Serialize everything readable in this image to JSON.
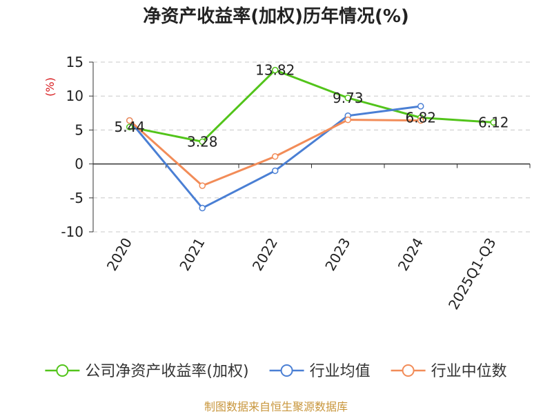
{
  "chart_data": {
    "type": "line",
    "title": "净资产收益率(加权)历年情况(%)",
    "ylabel": "(%)",
    "xlabel": "",
    "categories": [
      "2020",
      "2021",
      "2022",
      "2023",
      "2024",
      "2025Q1-Q3"
    ],
    "ylim": [
      -10,
      15
    ],
    "yticks": [
      "15",
      "10",
      "5",
      "0",
      "-5",
      "-10"
    ],
    "grid": true,
    "legend_position": "bottom",
    "series": [
      {
        "name": "公司净资产收益率(加权)",
        "color": "#52c41a",
        "values": [
          5.44,
          3.28,
          13.82,
          9.73,
          6.82,
          6.12
        ],
        "labels": [
          "5.44",
          "3.28",
          "13.82",
          "9.73",
          "6.82",
          "6.12"
        ]
      },
      {
        "name": "行业均值",
        "color": "#4a7fd4",
        "values": [
          6.4,
          -6.5,
          -1.0,
          7.1,
          8.5,
          null
        ]
      },
      {
        "name": "行业中位数",
        "color": "#f28c58",
        "values": [
          6.4,
          -3.2,
          1.1,
          6.5,
          6.4,
          null
        ]
      }
    ],
    "source": "制图数据来自恒生聚源数据库"
  }
}
